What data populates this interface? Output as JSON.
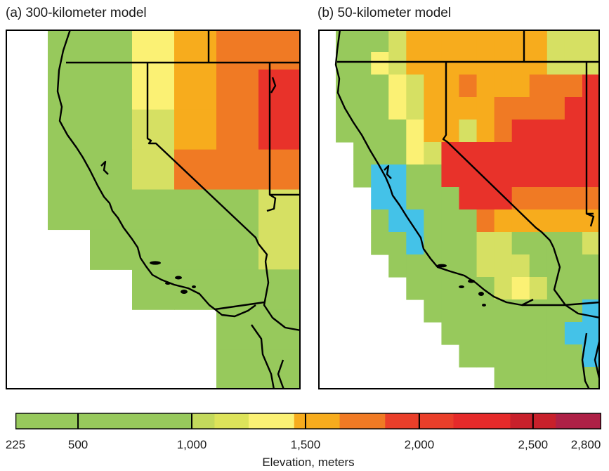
{
  "panels": {
    "a_title": "(a) 300-kilometer model",
    "b_title": "(b) 50-kilometer model"
  },
  "legend": {
    "title": "Elevation, meters",
    "range": [
      225,
      2800
    ],
    "tick_values": [
      225,
      500,
      1000,
      1500,
      2000,
      2500,
      2800
    ],
    "tick_labels": [
      "225",
      "500",
      "1,000",
      "1,500",
      "2,000",
      "2,500",
      "2,800"
    ],
    "bins": [
      {
        "from": 225,
        "to": 1000,
        "color": "#97c95c"
      },
      {
        "from": 1000,
        "to": 1100,
        "color": "#c3d95c"
      },
      {
        "from": 1100,
        "to": 1250,
        "color": "#dde35a"
      },
      {
        "from": 1250,
        "to": 1450,
        "color": "#fbf174"
      },
      {
        "from": 1450,
        "to": 1650,
        "color": "#f7ac1d"
      },
      {
        "from": 1650,
        "to": 1850,
        "color": "#f07a24"
      },
      {
        "from": 1850,
        "to": 2150,
        "color": "#ea3f2a"
      },
      {
        "from": 2150,
        "to": 2400,
        "color": "#e62a2a"
      },
      {
        "from": 2400,
        "to": 2600,
        "color": "#c8202b"
      },
      {
        "from": 2600,
        "to": 2800,
        "color": "#ae2046"
      }
    ]
  },
  "colors": {
    "low_green": "#97c95c",
    "yellow_green": "#d6e063",
    "yellow": "#fbf174",
    "orange": "#f7ac1d",
    "dark_orange": "#f07a24",
    "red": "#e8322a",
    "below_sea_blue": "#44c2e8",
    "outline": "#000000"
  },
  "map_a": {
    "grid": [
      [
        "W",
        "G",
        "G",
        "Y",
        "O",
        "DO",
        "DO"
      ],
      [
        "W",
        "G",
        "G",
        "Y",
        "O",
        "DO",
        "R"
      ],
      [
        "W",
        "G",
        "G",
        "L",
        "O",
        "DO",
        "R"
      ],
      [
        "W",
        "G",
        "G",
        "L",
        "DO",
        "DO",
        "DO"
      ],
      [
        "W",
        "G",
        "G",
        "G",
        "G",
        "G",
        "L"
      ],
      [
        "W",
        "W",
        "G",
        "G",
        "G",
        "G",
        "L"
      ],
      [
        "W",
        "W",
        "W",
        "G",
        "G",
        "G",
        "G"
      ],
      [
        "W",
        "W",
        "W",
        "W",
        "W",
        "G",
        "G"
      ],
      [
        "W",
        "W",
        "W",
        "W",
        "W",
        "G",
        "G"
      ]
    ]
  },
  "map_b": {
    "grid": [
      [
        "W",
        "G",
        "G",
        "G",
        "L",
        "O",
        "O",
        "O",
        "O",
        "O",
        "O",
        "O",
        "O",
        "L",
        "L",
        "L"
      ],
      [
        "W",
        "G",
        "G",
        "Y",
        "L",
        "O",
        "O",
        "O",
        "O",
        "O",
        "O",
        "O",
        "O",
        "L",
        "L",
        "L"
      ],
      [
        "W",
        "G",
        "G",
        "G",
        "Y",
        "L",
        "O",
        "O",
        "DO",
        "O",
        "O",
        "O",
        "DO",
        "DO",
        "DO",
        "R"
      ],
      [
        "W",
        "G",
        "G",
        "G",
        "Y",
        "L",
        "O",
        "O",
        "O",
        "O",
        "DO",
        "DO",
        "DO",
        "DO",
        "R",
        "R"
      ],
      [
        "W",
        "G",
        "G",
        "G",
        "G",
        "Y",
        "O",
        "O",
        "L",
        "O",
        "DO",
        "R",
        "R",
        "R",
        "R",
        "R"
      ],
      [
        "W",
        "W",
        "G",
        "G",
        "G",
        "Y",
        "L",
        "R",
        "R",
        "R",
        "R",
        "R",
        "R",
        "R",
        "R",
        "R"
      ],
      [
        "W",
        "W",
        "G",
        "B",
        "B",
        "G",
        "G",
        "R",
        "R",
        "R",
        "R",
        "R",
        "R",
        "R",
        "R",
        "R"
      ],
      [
        "W",
        "W",
        "W",
        "B",
        "B",
        "G",
        "G",
        "G",
        "R",
        "R",
        "R",
        "DO",
        "DO",
        "DO",
        "DO",
        "DO"
      ],
      [
        "W",
        "W",
        "W",
        "G",
        "B",
        "B",
        "G",
        "G",
        "G",
        "DO",
        "O",
        "O",
        "O",
        "O",
        "O",
        "O"
      ],
      [
        "W",
        "W",
        "W",
        "G",
        "G",
        "B",
        "G",
        "G",
        "G",
        "L",
        "L",
        "G",
        "G",
        "G",
        "G",
        "L"
      ],
      [
        "W",
        "W",
        "W",
        "W",
        "G",
        "G",
        "G",
        "G",
        "G",
        "L",
        "L",
        "L",
        "G",
        "G",
        "G",
        "G"
      ],
      [
        "W",
        "W",
        "W",
        "W",
        "W",
        "G",
        "G",
        "G",
        "G",
        "G",
        "L",
        "Y",
        "L",
        "G",
        "G",
        "G"
      ],
      [
        "W",
        "W",
        "W",
        "W",
        "W",
        "W",
        "G",
        "G",
        "G",
        "G",
        "G",
        "G",
        "G",
        "G",
        "G",
        "B"
      ],
      [
        "W",
        "W",
        "W",
        "W",
        "W",
        "W",
        "W",
        "G",
        "G",
        "G",
        "G",
        "G",
        "G",
        "G",
        "B",
        "B"
      ],
      [
        "W",
        "W",
        "W",
        "W",
        "W",
        "W",
        "W",
        "W",
        "G",
        "G",
        "G",
        "G",
        "G",
        "G",
        "G",
        "B"
      ],
      [
        "W",
        "W",
        "W",
        "W",
        "W",
        "W",
        "W",
        "W",
        "W",
        "W",
        "G",
        "G",
        "G",
        "G",
        "G",
        "G"
      ]
    ]
  }
}
